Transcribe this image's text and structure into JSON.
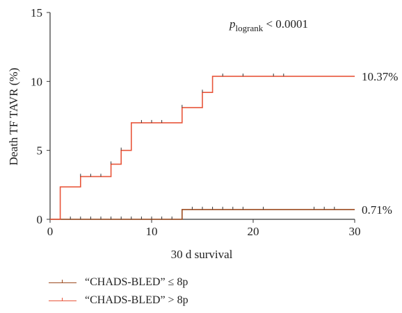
{
  "chart_data": {
    "type": "line",
    "xlabel": "30 d survival",
    "ylabel": "Death TF TAVR (%)",
    "xlim": [
      0,
      30
    ],
    "ylim": [
      0,
      15
    ],
    "xticks": [
      "0",
      "10",
      "20",
      "30"
    ],
    "yticks": [
      "0",
      "5",
      "10",
      "15"
    ],
    "annotation": {
      "p": "p",
      "sub": "logrank",
      "rest": " < 0.0001"
    },
    "series": [
      {
        "name": "“CHADS-BLED” ≤ 8p",
        "color": "#9b4a1e",
        "steps": [
          [
            0,
            0
          ],
          [
            13,
            0.71
          ],
          [
            30,
            0.71
          ]
        ],
        "censor": [
          1,
          2,
          3,
          4,
          5,
          6,
          7,
          8,
          9,
          10,
          11,
          12,
          14,
          15,
          16,
          17,
          18,
          19,
          21,
          26,
          27,
          28
        ],
        "end_label": "0.71%"
      },
      {
        "name": "“CHADS-BLED” > 8p",
        "color": "#e8553a",
        "steps": [
          [
            0,
            0
          ],
          [
            1,
            2.35
          ],
          [
            3,
            3.1
          ],
          [
            6,
            4.0
          ],
          [
            7,
            5.0
          ],
          [
            8,
            7.0
          ],
          [
            13,
            8.1
          ],
          [
            15,
            9.2
          ],
          [
            16,
            10.37
          ],
          [
            30,
            10.37
          ]
        ],
        "censor": [
          3,
          4,
          5,
          6,
          7,
          9,
          10,
          11,
          13,
          15,
          17,
          19,
          22,
          23
        ],
        "end_label": "10.37%"
      }
    ]
  }
}
